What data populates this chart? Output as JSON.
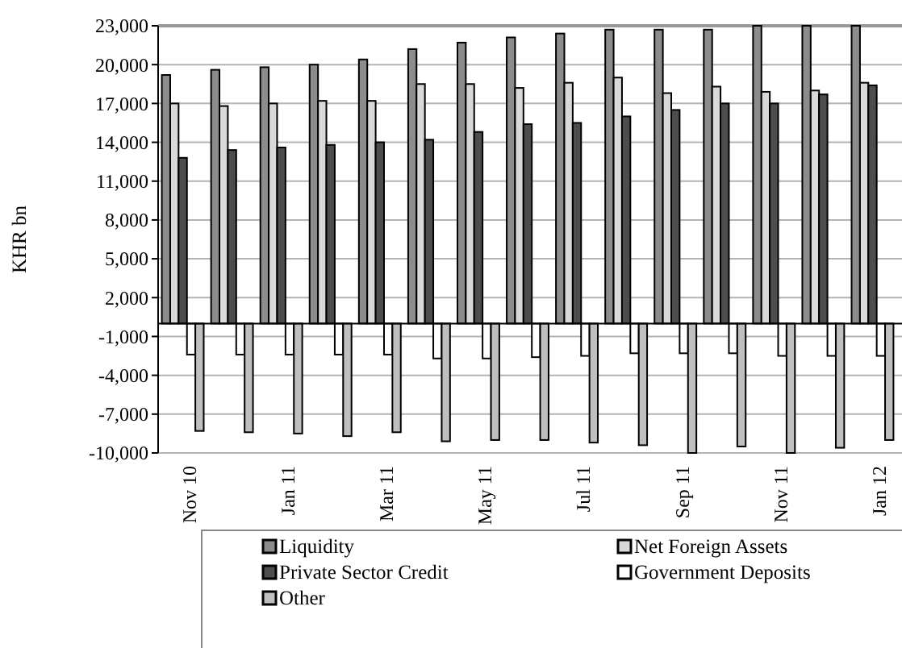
{
  "chart_data": {
    "type": "bar",
    "ylabel": "KHR bn",
    "categories": [
      "Nov 10",
      null,
      "Jan 11",
      null,
      "Mar 11",
      null,
      "May 11",
      null,
      "Jul 11",
      null,
      "Sep 11",
      null,
      "Nov 11",
      null,
      "Jan 12"
    ],
    "series": [
      {
        "name": "Liquidity",
        "color": "#8c8c8c",
        "values": [
          19200,
          19600,
          19800,
          20000,
          20400,
          21200,
          21700,
          22100,
          22400,
          22700,
          22700,
          22700,
          23000,
          23000,
          23000
        ]
      },
      {
        "name": "Net Foreign Assets",
        "color": "#d9d9d9",
        "values": [
          17000,
          16800,
          17000,
          17200,
          17200,
          18500,
          18500,
          18200,
          18600,
          19000,
          17800,
          18300,
          17900,
          18000,
          18600
        ]
      },
      {
        "name": "Private Sector Credit",
        "color": "#4d4d4d",
        "values": [
          12800,
          13400,
          13600,
          13800,
          14000,
          14200,
          14800,
          15400,
          15500,
          16000,
          16500,
          17000,
          17000,
          17700,
          18400
        ]
      },
      {
        "name": "Government Deposits",
        "color": "#ffffff",
        "values": [
          -2400,
          -2400,
          -2400,
          -2400,
          -2400,
          -2700,
          -2700,
          -2600,
          -2500,
          -2300,
          -2300,
          -2300,
          -2500,
          -2500,
          -2500
        ]
      },
      {
        "name": "Other",
        "color": "#bfbfbf",
        "values": [
          -8300,
          -8400,
          -8500,
          -8700,
          -8400,
          -9100,
          -9000,
          -9000,
          -9200,
          -9400,
          -10000,
          -9500,
          -10000,
          -9600,
          -9000
        ]
      }
    ],
    "ylim": [
      -10000,
      23000
    ],
    "yticks": [
      {
        "value": -10000,
        "label": "-10,000"
      },
      {
        "value": -7000,
        "label": "-7,000"
      },
      {
        "value": -4000,
        "label": "-4,000"
      },
      {
        "value": -1000,
        "label": "-1,000"
      },
      {
        "value": 2000,
        "label": "2,000"
      },
      {
        "value": 5000,
        "label": "5,000"
      },
      {
        "value": 8000,
        "label": "8,000"
      },
      {
        "value": 11000,
        "label": "11,000"
      },
      {
        "value": 14000,
        "label": "14,000"
      },
      {
        "value": 17000,
        "label": "17,000"
      },
      {
        "value": 20000,
        "label": "20,000"
      },
      {
        "value": 23000,
        "label": "23,000"
      }
    ],
    "grid": "y",
    "legend": "bottom"
  }
}
